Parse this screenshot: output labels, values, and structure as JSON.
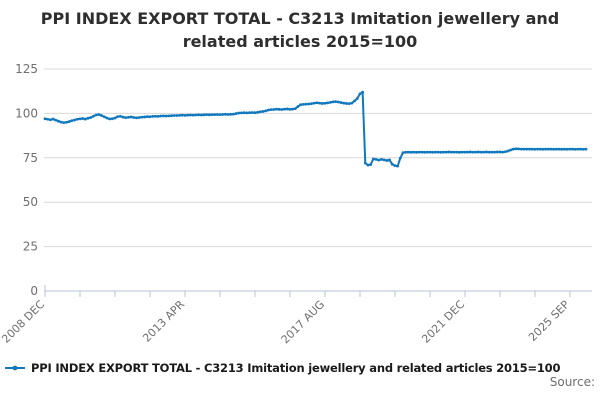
{
  "title": "PPI INDEX EXPORT TOTAL - C3213 Imitation jewellery and related articles 2015=100",
  "legend": {
    "series_label": "PPI INDEX EXPORT TOTAL - C3213 Imitation jewellery and related articles 2015=100"
  },
  "source_label": "Source:",
  "colors": {
    "line": "#1178be",
    "grid": "#d9d9d9",
    "axis": "#b7c3d7",
    "tick_label": "#6f6f6f",
    "title_text": "#2e2e2e"
  },
  "chart_data": {
    "type": "line",
    "title": "PPI INDEX EXPORT TOTAL - C3213 Imitation jewellery and related articles 2015=100",
    "xlabel": "",
    "ylabel": "",
    "ylim": [
      0,
      125
    ],
    "y_ticks": [
      0,
      25,
      50,
      75,
      100,
      125
    ],
    "grid": "horizontal",
    "legend_position": "bottom-left",
    "period": "monthly",
    "x_start": "2008 DEC",
    "x_end": "2025 SEP",
    "x_tick_labels": [
      {
        "label": "2008 DEC",
        "tick": 0
      },
      {
        "label": "2013 APR",
        "tick": 4
      },
      {
        "label": "2017 AUG",
        "tick": 8
      },
      {
        "label": "2021 DEC",
        "tick": 12
      },
      {
        "label": "2025 SEP",
        "tick": 15
      }
    ],
    "minor_tick_count": 16,
    "series": [
      {
        "name": "PPI INDEX EXPORT TOTAL - C3213 Imitation jewellery and related articles 2015=100",
        "values": [
          97.0,
          96.7,
          96.4,
          96.8,
          96.2,
          95.6,
          95.1,
          94.8,
          95.0,
          95.4,
          95.9,
          96.3,
          96.7,
          96.9,
          97.1,
          96.8,
          97.3,
          97.7,
          98.4,
          99.1,
          99.4,
          98.8,
          98.1,
          97.4,
          96.9,
          97.0,
          97.4,
          98.2,
          98.4,
          97.9,
          97.6,
          97.8,
          98.0,
          97.7,
          97.5,
          97.7,
          97.9,
          98.0,
          98.2,
          98.1,
          98.3,
          98.4,
          98.3,
          98.5,
          98.6,
          98.5,
          98.6,
          98.7,
          98.8,
          98.8,
          98.9,
          99.0,
          98.9,
          99.0,
          99.1,
          99.0,
          99.1,
          99.2,
          99.1,
          99.2,
          99.3,
          99.2,
          99.3,
          99.3,
          99.4,
          99.3,
          99.4,
          99.5,
          99.4,
          99.5,
          99.6,
          99.9,
          100.2,
          100.3,
          100.4,
          100.3,
          100.4,
          100.5,
          100.4,
          100.6,
          100.9,
          101.1,
          101.4,
          101.9,
          102.1,
          102.2,
          102.4,
          102.3,
          102.2,
          102.4,
          102.5,
          102.3,
          102.4,
          102.7,
          103.9,
          104.9,
          105.1,
          105.2,
          105.3,
          105.5,
          105.8,
          106.0,
          105.8,
          105.6,
          105.7,
          105.9,
          106.2,
          106.5,
          106.6,
          106.4,
          106.1,
          105.8,
          105.6,
          105.5,
          105.8,
          107.0,
          108.4,
          111.0,
          112.0,
          72.0,
          70.9,
          71.2,
          74.4,
          74.1,
          73.7,
          74.1,
          73.8,
          73.5,
          73.8,
          71.4,
          70.6,
          70.3,
          74.8,
          77.9,
          78.1,
          78.2,
          78.1,
          78.2,
          78.1,
          78.2,
          78.2,
          78.1,
          78.2,
          78.2,
          78.1,
          78.2,
          78.2,
          78.1,
          78.2,
          78.2,
          78.3,
          78.2,
          78.2,
          78.2,
          78.1,
          78.2,
          78.2,
          78.2,
          78.3,
          78.2,
          78.2,
          78.3,
          78.2,
          78.2,
          78.3,
          78.2,
          78.2,
          78.2,
          78.3,
          78.3,
          78.2,
          78.4,
          78.8,
          79.4,
          79.9,
          80.1,
          80.0,
          79.9,
          79.9,
          79.9,
          79.9,
          79.9,
          79.8,
          79.9,
          79.9,
          79.8,
          79.9,
          79.9,
          79.9,
          79.8,
          79.9,
          79.9,
          79.8,
          79.9,
          79.8,
          79.9,
          79.9,
          79.8,
          79.9,
          79.9,
          79.8,
          79.9
        ]
      }
    ]
  }
}
